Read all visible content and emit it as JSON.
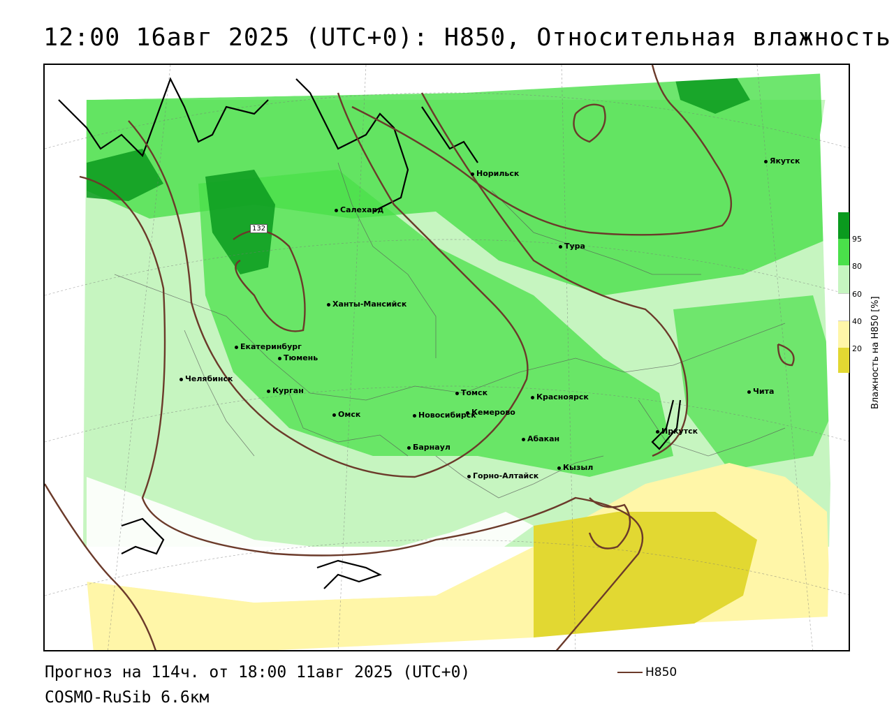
{
  "title": "12:00 16авг 2025 (UTC+0): H850, Относительная влажность",
  "footer": {
    "forecast": "Прогноз на 114ч. от 18:00 11авг 2025 (UTC+0)",
    "model": "COSMO-RuSib 6.6км",
    "contour_key_label": "H850"
  },
  "legend": {
    "caption": "Влажность на H850 [%]",
    "ticks": [
      "95",
      "80",
      "60",
      "40",
      "20"
    ],
    "colors": {
      "very_humid": "#0a9a1e",
      "humid": "#4ae04a",
      "moist": "#c6f5c0",
      "neutral": "#ffffff",
      "dry": "#fff6a8",
      "very_dry": "#e2d832"
    }
  },
  "contour_label": "132",
  "cities": [
    {
      "name": "Якутск"
    },
    {
      "name": "Норильск"
    },
    {
      "name": "Салехард"
    },
    {
      "name": "Тура"
    },
    {
      "name": "Ханты-Мансийск"
    },
    {
      "name": "Екатеринбург"
    },
    {
      "name": "Тюмень"
    },
    {
      "name": "Челябинск"
    },
    {
      "name": "Курган"
    },
    {
      "name": "Омск"
    },
    {
      "name": "Новосибирск"
    },
    {
      "name": "Томск"
    },
    {
      "name": "Кемерово"
    },
    {
      "name": "Красноярск"
    },
    {
      "name": "Абакан"
    },
    {
      "name": "Барнаул"
    },
    {
      "name": "Горно-Алтайск"
    },
    {
      "name": "Кызыл"
    },
    {
      "name": "Иркутск"
    },
    {
      "name": "Чита"
    }
  ]
}
